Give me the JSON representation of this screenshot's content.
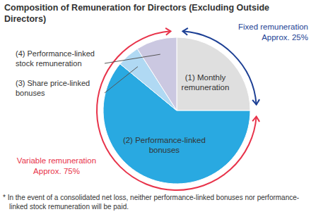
{
  "chart_data": {
    "type": "pie",
    "title": "Composition of Remuneration for Directors (Excluding Outside Directors)",
    "categories": [
      "(1) Monthly remuneration",
      "(2) Performance-linked bonuses",
      "(3) Share price-linked bonuses",
      "(4) Performance-linked stock remuneration"
    ],
    "values": [
      25,
      61,
      5,
      9
    ],
    "colors": [
      "#dfdfdf",
      "#29a9e1",
      "#b0d9f3",
      "#cbc8e1"
    ],
    "groups": [
      {
        "name": "Fixed remuneration",
        "value": 25,
        "value_label": "Approx. 25%",
        "color": "#1c3f94"
      },
      {
        "name": "Variable remuneration",
        "value": 75,
        "value_label": "Approx. 75%",
        "color": "#e8334a"
      }
    ],
    "footnote": "* In the event of a consolidated net loss, neither performance-linked bonuses nor performance-linked stock remuneration will be paid."
  }
}
